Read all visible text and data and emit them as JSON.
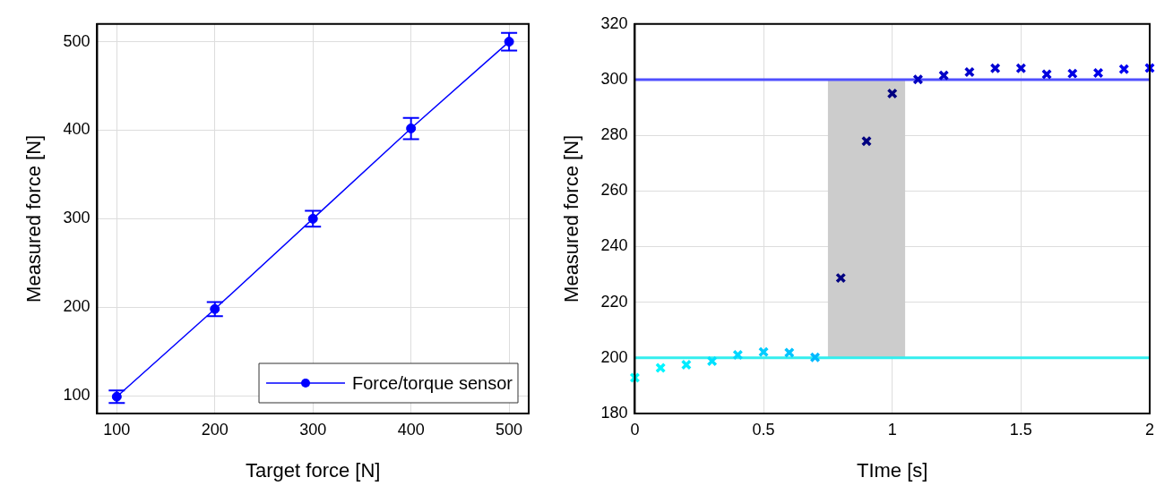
{
  "chart_data": [
    {
      "type": "line",
      "xlabel": "Target force [N]",
      "ylabel": "Measured force [N]",
      "x": [
        100,
        200,
        300,
        400,
        500
      ],
      "series": [
        {
          "name": "Force/torque sensor",
          "color": "#0000ff",
          "values": [
            99,
            198,
            300,
            402,
            500
          ],
          "errors": [
            7,
            8,
            9,
            12,
            10
          ]
        }
      ],
      "xlim": [
        80,
        520
      ],
      "xticks": [
        100,
        200,
        300,
        400,
        500
      ],
      "ylim": [
        80,
        520
      ],
      "yticks": [
        100,
        200,
        300,
        400,
        500
      ],
      "grid": true,
      "legend": "bottom right",
      "marker": "circle",
      "line_style": "solid"
    },
    {
      "type": "scatter",
      "xlabel": "TIme [s]",
      "ylabel": "Measured force [N]",
      "x": [
        0,
        0.1,
        0.2,
        0.3,
        0.4,
        0.5,
        0.6,
        0.7,
        0.8,
        0.9,
        1,
        1.1,
        1.2,
        1.3,
        1.4,
        1.5,
        1.6,
        1.7,
        1.8,
        1.9,
        2
      ],
      "values": [
        192.9,
        196.4,
        197.5,
        198.8,
        201.1,
        202.1,
        201.9,
        200.2,
        228.7,
        277.9,
        295,
        300.1,
        301.5,
        302.7,
        304.1,
        304.1,
        301.9,
        302.2,
        302.4,
        303.8,
        304.2
      ],
      "colors": [
        "#00ffff",
        "#00f5ff",
        "#00ebff",
        "#00e1ff",
        "#00d7ff",
        "#00cdff",
        "#00c3ff",
        "#00b9ff",
        "#000080",
        "#000080",
        "#000080",
        "#0000c0",
        "#0000c6",
        "#0000cc",
        "#0000d2",
        "#0000d8",
        "#0000de",
        "#0000e4",
        "#0000ea",
        "#0000f0",
        "#0000f8"
      ],
      "xlim": [
        0,
        2
      ],
      "xticks": [
        0,
        0.5,
        1,
        1.5,
        2
      ],
      "ylim": [
        180,
        320
      ],
      "yticks": [
        180,
        200,
        220,
        240,
        260,
        280,
        300,
        320
      ],
      "grid": true,
      "marker": "cross",
      "ref_lines": [
        {
          "axis": "y",
          "value": 300,
          "color": "#5050ff"
        },
        {
          "axis": "y",
          "value": 200,
          "color": "#33eeee"
        }
      ],
      "bands": [
        {
          "axis": "x",
          "from": 0.75,
          "to": 1.05,
          "color": "#cccccc"
        }
      ]
    }
  ]
}
